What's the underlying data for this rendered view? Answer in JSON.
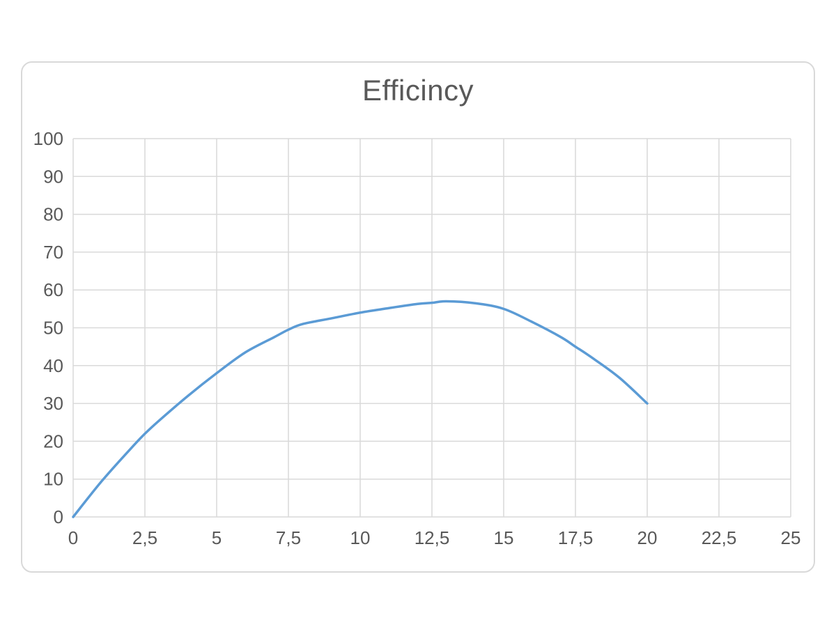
{
  "chart": {
    "title": "Efficincy"
  },
  "chart_data": {
    "type": "line",
    "title": "Efficincy",
    "series": [
      {
        "name": "Efficincy",
        "x": [
          0,
          1,
          2,
          2.5,
          3,
          4,
          5,
          6,
          7,
          7.5,
          8,
          9,
          10,
          11,
          12,
          12.5,
          13,
          14,
          15,
          16,
          17,
          17.5,
          18,
          19,
          20
        ],
        "y": [
          0,
          9.5,
          18,
          22,
          25.5,
          32,
          38,
          43.5,
          47.5,
          49.5,
          51,
          52.5,
          54,
          55.2,
          56.3,
          56.6,
          57,
          56.5,
          55,
          51.5,
          47.5,
          45,
          42.5,
          37,
          30
        ]
      }
    ],
    "xlim": [
      0,
      25
    ],
    "ylim": [
      0,
      100
    ],
    "x_ticks": [
      0,
      2.5,
      5,
      7.5,
      10,
      12.5,
      15,
      17.5,
      20,
      22.5,
      25
    ],
    "x_tick_labels": [
      "0",
      "2,5",
      "5",
      "7,5",
      "10",
      "12,5",
      "15",
      "17,5",
      "20",
      "22,5",
      "25"
    ],
    "y_ticks": [
      0,
      10,
      20,
      30,
      40,
      50,
      60,
      70,
      80,
      90,
      100
    ],
    "y_tick_labels": [
      "0",
      "10",
      "20",
      "30",
      "40",
      "50",
      "60",
      "70",
      "80",
      "90",
      "100"
    ],
    "grid": true,
    "legend": "none",
    "line_color": "#5b9bd5",
    "grid_color": "#d9d9d9",
    "frame_border_color": "#d9d9d9",
    "tick_color": "#595959",
    "title_color": "#595959",
    "background_color": "#ffffff"
  }
}
